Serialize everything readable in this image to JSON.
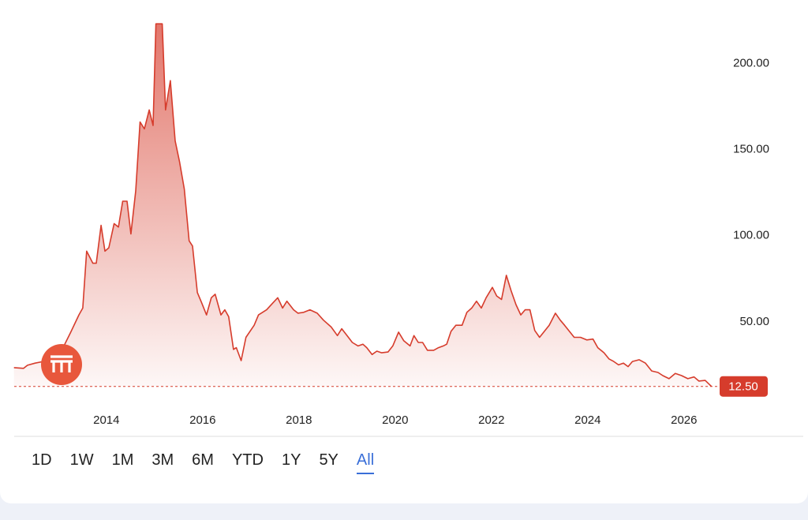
{
  "chart_data": {
    "type": "area",
    "x": [
      2012.08,
      2012.28,
      2012.36,
      2012.52,
      2012.69,
      2012.93,
      2013.1,
      2013.26,
      2013.43,
      2013.51,
      2013.59,
      2013.72,
      2013.79,
      2013.89,
      2013.97,
      2014.05,
      2014.16,
      2014.25,
      2014.34,
      2014.43,
      2014.51,
      2014.61,
      2014.7,
      2014.79,
      2014.89,
      2014.97,
      2015.03,
      2015.16,
      2015.23,
      2015.33,
      2015.43,
      2015.52,
      2015.62,
      2015.72,
      2015.79,
      2015.89,
      2015.98,
      2016.08,
      2016.18,
      2016.26,
      2016.38,
      2016.46,
      2016.54,
      2016.64,
      2016.7,
      2016.8,
      2016.9,
      2017.07,
      2017.16,
      2017.33,
      2017.46,
      2017.56,
      2017.66,
      2017.75,
      2017.89,
      2017.98,
      2018.1,
      2018.23,
      2018.38,
      2018.51,
      2018.67,
      2018.8,
      2018.89,
      2019.0,
      2019.11,
      2019.23,
      2019.33,
      2019.41,
      2019.52,
      2019.62,
      2019.72,
      2019.85,
      2019.95,
      2020.07,
      2020.18,
      2020.31,
      2020.39,
      2020.48,
      2020.57,
      2020.67,
      2020.8,
      2020.9,
      2021.0,
      2021.07,
      2021.16,
      2021.26,
      2021.39,
      2021.49,
      2021.59,
      2021.69,
      2021.79,
      2021.89,
      2022.02,
      2022.11,
      2022.21,
      2022.31,
      2022.41,
      2022.51,
      2022.61,
      2022.7,
      2022.8,
      2022.9,
      2023.0,
      2023.1,
      2023.2,
      2023.33,
      2023.43,
      2023.52,
      2023.62,
      2023.72,
      2023.85,
      2023.98,
      2024.11,
      2024.21,
      2024.34,
      2024.44,
      2024.54,
      2024.64,
      2024.74,
      2024.84,
      2024.93,
      2025.07,
      2025.2,
      2025.33,
      2025.46,
      2025.56,
      2025.69,
      2025.82,
      2025.95,
      2026.08,
      2026.21,
      2026.31,
      2026.44,
      2026.57
    ],
    "values": [
      23.4,
      23.0,
      24.8,
      26,
      27,
      28,
      35,
      44,
      54,
      58,
      91,
      84,
      84,
      106,
      91,
      93,
      107,
      105,
      120,
      120,
      101,
      126,
      166,
      162,
      173,
      164,
      223,
      223,
      173,
      190,
      155,
      143,
      127,
      97,
      94,
      67,
      61,
      54,
      64,
      66,
      54,
      57,
      53,
      34,
      35,
      27.5,
      41,
      48,
      54,
      57,
      61,
      64,
      58,
      62,
      57,
      55,
      55.5,
      57,
      55,
      51,
      47,
      42,
      46,
      42,
      38,
      36,
      37,
      35,
      31,
      33,
      32,
      32.5,
      36,
      44,
      39,
      36,
      42,
      38,
      38,
      33.5,
      33.5,
      35,
      36,
      37,
      44.5,
      48,
      48,
      55.5,
      58,
      62,
      58,
      64,
      70,
      65,
      63,
      77,
      68,
      60,
      54,
      57,
      57,
      45,
      41,
      44.5,
      48,
      55,
      51,
      48,
      44.5,
      41,
      41,
      39.5,
      40,
      35,
      32,
      28.5,
      27,
      25,
      26,
      24,
      27,
      28,
      26,
      21.5,
      20.6,
      18.8,
      17,
      20,
      18.8,
      17,
      18,
      15.6,
      16,
      12.5
    ],
    "color": "#d63c2c",
    "xlim": [
      2011.79,
      2026.79
    ],
    "xticks": [
      2014,
      2016,
      2018,
      2020,
      2022,
      2024,
      2026
    ],
    "ylim": [
      0,
      224
    ],
    "yticks": [
      {
        "value": 50,
        "label": "50.00"
      },
      {
        "value": 100,
        "label": "100.00"
      },
      {
        "value": 150,
        "label": "150.00"
      },
      {
        "value": 200,
        "label": "200.00"
      }
    ],
    "reference_line": {
      "value": 12.5,
      "label": "12.50"
    },
    "range_buttons": [
      "1D",
      "1W",
      "1M",
      "3M",
      "6M",
      "YTD",
      "1Y",
      "5Y",
      "All"
    ],
    "selected_range_index": 8
  }
}
